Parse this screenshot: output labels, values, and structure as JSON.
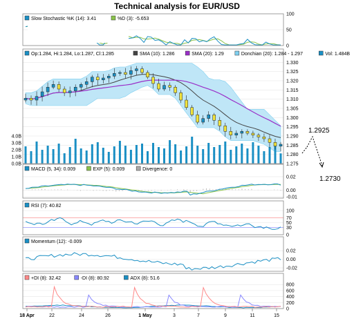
{
  "chart_data": {
    "type": "line",
    "title": "Technical analysis for EUR/USD",
    "x_ticks": [
      "18 Apr",
      "22",
      "24",
      "26",
      "1 May",
      "3",
      "7",
      "9",
      "11",
      "15"
    ],
    "panels": [
      {
        "key": "stoch",
        "legend": [
          {
            "label": "Slow Stochastic %K (14): 3.41",
            "color": "#1a8fc4"
          },
          {
            "label": "%D (3): -5.653",
            "color": "#8ac34a"
          }
        ],
        "y_ticks": [
          "100",
          "50",
          "0"
        ],
        "ylim": [
          0,
          100
        ]
      },
      {
        "key": "price",
        "legend": [
          {
            "label": "Op:1.284, Hi:1.284, Lo:1.287, Cl:1.285",
            "color": "#1a8fc4"
          },
          {
            "label": "SMA (10): 1.286",
            "color": "#444444"
          },
          {
            "label": "SMA (20): 1.29",
            "color": "#9a2fc8"
          },
          {
            "label": "Donchian (20): 1.284 - 1.297",
            "color": "#7fd0f0"
          },
          {
            "label": "Vol: 1.484B",
            "color": "#1a8fc4"
          }
        ],
        "y_ticks": [
          "1.330",
          "1.325",
          "1.320",
          "1.315",
          "1.310",
          "1.305",
          "1.300",
          "1.295",
          "1.290",
          "1.285",
          "1.280",
          "1.275"
        ],
        "vol_ticks": [
          "4.0B",
          "3.0B",
          "2.0B",
          "1.0B",
          "0.0B"
        ],
        "ylim": [
          1.275,
          1.332
        ],
        "close": [
          1.3105,
          1.3095,
          1.3115,
          1.314,
          1.3165,
          1.318,
          1.3155,
          1.3135,
          1.3145,
          1.3165,
          1.318,
          1.3195,
          1.322,
          1.3205,
          1.3215,
          1.3225,
          1.324,
          1.3245,
          1.3235,
          1.3255,
          1.3265,
          1.3245,
          1.322,
          1.3185,
          1.3155,
          1.3175,
          1.3165,
          1.3135,
          1.3095,
          1.3055,
          1.3015,
          1.2975,
          1.2995,
          1.3015,
          1.2985,
          1.2955,
          1.2925,
          1.2905,
          1.2915,
          1.2925,
          1.2915,
          1.2905,
          1.2895,
          1.2885,
          1.2865,
          1.2845,
          1.2855
        ],
        "volume": [
          2.5,
          1.8,
          3.2,
          2.0,
          2.6,
          2.1,
          2.9,
          1.5,
          2.4,
          3.6,
          2.2,
          1.9,
          2.8,
          3.1,
          2.3,
          1.7,
          2.5,
          3.3,
          2.6,
          2.0,
          2.7,
          2.9,
          1.8,
          3.0,
          2.4,
          2.2,
          3.4,
          2.8,
          1.9,
          2.5,
          3.9,
          2.6,
          2.1,
          3.0,
          2.4,
          2.7,
          3.2,
          2.0,
          2.5,
          2.9,
          2.2,
          3.1,
          2.6,
          1.8,
          2.4,
          3.0,
          1.484
        ]
      },
      {
        "key": "macd",
        "legend": [
          {
            "label": "MACD (5, 34): 0.009",
            "color": "#1a8fc4"
          },
          {
            "label": "EXP (5): 0.009",
            "color": "#8ac34a"
          },
          {
            "label": "Divergence: 0",
            "color": "#aaaaaa"
          }
        ],
        "y_ticks": [
          "0.02",
          "0.00",
          "-0.01"
        ],
        "ylim": [
          -0.012,
          0.024
        ]
      },
      {
        "key": "rsi",
        "legend": [
          {
            "label": "RSI (7): 40.82",
            "color": "#1a8fc4"
          }
        ],
        "y_ticks": [
          "100",
          "70",
          "50",
          "30",
          "0"
        ],
        "ylim": [
          0,
          100
        ]
      },
      {
        "key": "momentum",
        "legend": [
          {
            "label": "Momentum (12): -0.009",
            "color": "#1a8fc4"
          }
        ],
        "y_ticks": [
          "0.02",
          "0.00",
          "-0.02"
        ],
        "ylim": [
          -0.028,
          0.03
        ]
      },
      {
        "key": "adx",
        "legend": [
          {
            "label": "+DI (8): 32.42",
            "color": "#ff8888"
          },
          {
            "label": "-DI (8): 80.92",
            "color": "#8888ff"
          },
          {
            "label": "ADX (8): 51.6",
            "color": "#1a8fc4"
          }
        ],
        "y_ticks": [
          "800",
          "600",
          "400",
          "200",
          "0"
        ],
        "ylim": [
          0,
          850
        ]
      }
    ],
    "annotations": [
      "1.2925",
      "1.2730"
    ]
  }
}
